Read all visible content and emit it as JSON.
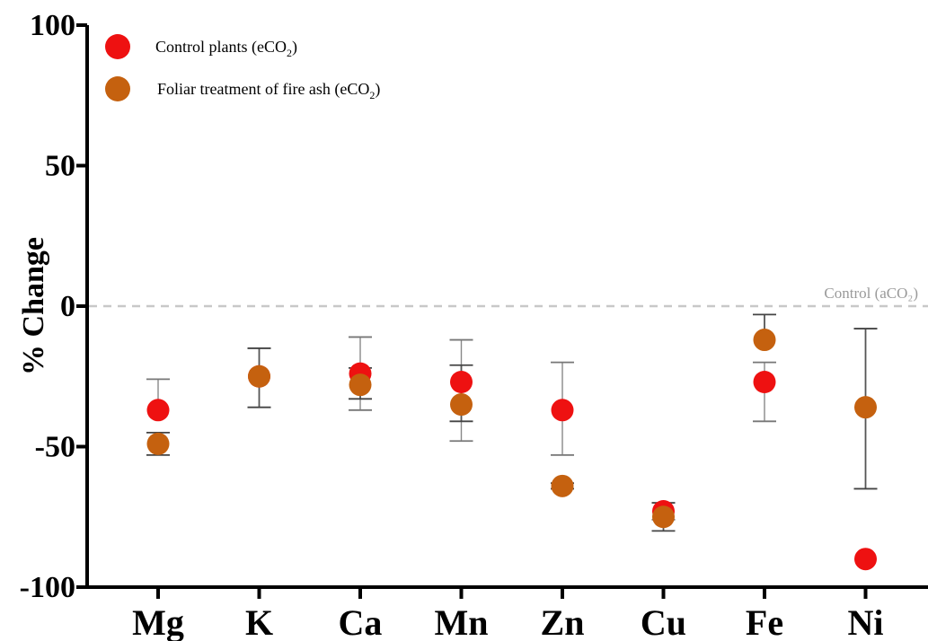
{
  "chart_data": {
    "type": "scatter",
    "ylabel": "% Change",
    "xlabel": "",
    "ylim": [
      -100,
      100
    ],
    "yticks": [
      -100,
      -50,
      0,
      50,
      100
    ],
    "categories": [
      "Mg",
      "K",
      "Ca",
      "Mn",
      "Zn",
      "Cu",
      "Fe",
      "Ni"
    ],
    "series": [
      {
        "name": "Control plants (eCO2)",
        "color": "#ee1111",
        "values": [
          -37,
          -25,
          -24,
          -27,
          -37,
          -73,
          -27,
          -90
        ],
        "error_low": [
          null,
          null,
          -37,
          -48,
          -53,
          -76,
          -41,
          null
        ],
        "error_high": [
          -26,
          null,
          -11,
          -12,
          -20,
          -70,
          -20,
          null
        ]
      },
      {
        "name": "Foliar treatment of fire ash (eCO2)",
        "color": "#c5610f",
        "values": [
          -49,
          -25,
          -28,
          -35,
          -64,
          -75,
          -12,
          -36
        ],
        "error_low": [
          -53,
          -36,
          -33,
          -41,
          -65,
          -80,
          null,
          -65
        ],
        "error_high": [
          -45,
          -15,
          -22,
          -21,
          -63,
          -70,
          -3,
          -8
        ]
      }
    ],
    "reference_line": {
      "value": 0,
      "label": "Control (aCO₂)",
      "color": "#c8c8c8"
    },
    "legend": {
      "placement": "top-left",
      "entries": [
        {
          "text": "Control plants (eCO",
          "sub": "2",
          "tail": ")"
        },
        {
          "text": "Foliar treatment of fire ash (eCO",
          "sub": "2",
          "tail": ")"
        }
      ]
    },
    "grid": false
  }
}
